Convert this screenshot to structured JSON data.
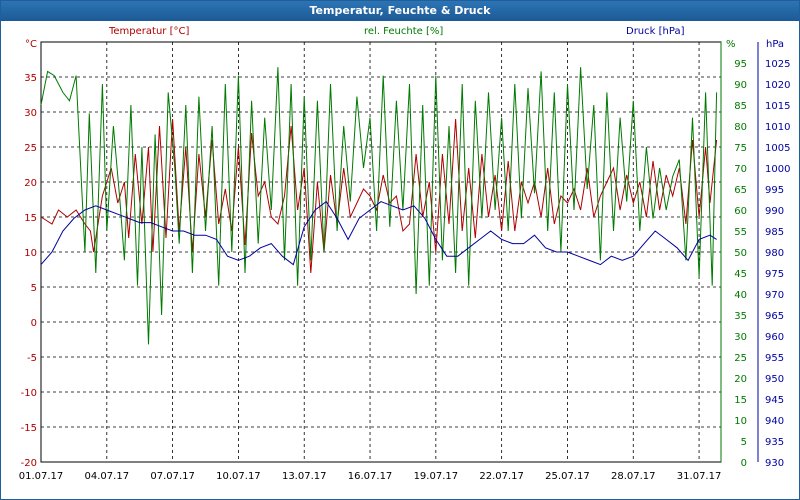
{
  "window": {
    "title": "Temperatur, Feuchte & Druck"
  },
  "colors": {
    "title_bg": "#1f63a3",
    "temp": "#b00000",
    "humid": "#007a00",
    "press": "#0000a0",
    "grid": "#000000",
    "date_text": "#000000"
  },
  "chart_data": {
    "type": "line",
    "title": "Temperatur, Feuchte & Druck",
    "grid": true,
    "x": [
      "01.07.17",
      "04.07.17",
      "07.07.17",
      "10.07.17",
      "13.07.17",
      "16.07.17",
      "19.07.17",
      "22.07.17",
      "25.07.17",
      "28.07.17",
      "31.07.17"
    ],
    "x_range": [
      1,
      32
    ],
    "x_ticks": [
      1,
      4,
      7,
      10,
      13,
      16,
      19,
      22,
      25,
      28,
      31
    ],
    "axes": {
      "left": {
        "unit": "°C",
        "range": [
          -20,
          40
        ],
        "ticks": [
          -20,
          -15,
          -10,
          -5,
          0,
          5,
          10,
          15,
          20,
          25,
          30,
          35
        ]
      },
      "right1": {
        "unit": "%",
        "range": [
          0,
          100
        ],
        "ticks": [
          0,
          5,
          10,
          15,
          20,
          25,
          30,
          35,
          40,
          45,
          50,
          55,
          60,
          65,
          70,
          75,
          80,
          85,
          90,
          95
        ]
      },
      "right2": {
        "unit": "hPa",
        "range": [
          930,
          1030
        ],
        "ticks": [
          930,
          935,
          940,
          945,
          950,
          955,
          960,
          965,
          970,
          975,
          980,
          985,
          990,
          995,
          1000,
          1005,
          1010,
          1015,
          1020,
          1025
        ]
      }
    },
    "series": [
      {
        "name": "Temperatur [°C]",
        "axis": "left",
        "color": "#b00000",
        "x": [
          1,
          1.5,
          1.8,
          2.2,
          2.6,
          3.0,
          3.25,
          3.4,
          3.8,
          4.2,
          4.5,
          4.8,
          5.0,
          5.3,
          5.6,
          5.9,
          6.1,
          6.4,
          6.7,
          7.0,
          7.3,
          7.6,
          7.9,
          8.2,
          8.5,
          8.8,
          9.1,
          9.4,
          9.7,
          10.0,
          10.3,
          10.6,
          10.9,
          11.2,
          11.5,
          11.8,
          12.1,
          12.4,
          12.7,
          13.0,
          13.3,
          13.6,
          13.9,
          14.2,
          14.5,
          14.8,
          15.1,
          15.4,
          15.7,
          16.0,
          16.3,
          16.6,
          16.9,
          17.2,
          17.5,
          17.8,
          18.1,
          18.4,
          18.7,
          19.0,
          19.3,
          19.6,
          19.9,
          20.2,
          20.5,
          20.8,
          21.1,
          21.4,
          21.7,
          22.0,
          22.3,
          22.6,
          22.9,
          23.2,
          23.5,
          23.8,
          24.1,
          24.4,
          24.7,
          25.0,
          25.3,
          25.6,
          25.9,
          26.2,
          26.5,
          26.8,
          27.1,
          27.4,
          27.7,
          28.0,
          28.3,
          28.6,
          28.9,
          29.2,
          29.5,
          29.8,
          30.1,
          30.4,
          30.7,
          31.0,
          31.3,
          31.5,
          31.8
        ],
        "values": [
          15,
          14,
          16,
          15,
          16,
          14,
          13,
          10,
          18,
          22,
          17,
          20,
          12,
          24,
          14,
          25,
          10,
          28,
          12,
          29,
          13,
          25,
          10,
          24,
          15,
          26,
          14,
          19,
          13,
          25,
          11,
          27,
          18,
          20,
          15,
          14,
          18,
          28,
          16,
          22,
          7,
          20,
          10,
          21,
          14,
          22,
          15,
          17,
          19,
          18,
          16,
          21,
          17,
          18,
          13,
          14,
          24,
          15,
          20,
          10,
          24,
          14,
          29,
          13,
          22,
          12,
          24,
          15,
          21,
          13,
          23,
          13,
          20,
          17,
          20,
          15,
          22,
          14,
          18,
          17,
          19,
          16,
          22,
          15,
          18,
          20,
          22,
          16,
          21,
          17,
          20,
          15,
          23,
          16,
          21,
          18,
          22,
          14,
          26,
          15,
          25,
          17,
          26
        ],
        "ylabel": ""
      },
      {
        "name": "rel. Feuchte [%]",
        "axis": "right1",
        "color": "#007a00",
        "x": [
          1,
          1.3,
          1.6,
          2.0,
          2.3,
          2.6,
          3.0,
          3.2,
          3.5,
          3.8,
          4.0,
          4.3,
          4.6,
          4.8,
          5.1,
          5.4,
          5.6,
          5.9,
          6.2,
          6.5,
          6.8,
          7.1,
          7.3,
          7.6,
          7.9,
          8.2,
          8.5,
          8.8,
          9.1,
          9.4,
          9.7,
          10.0,
          10.3,
          10.6,
          10.9,
          11.2,
          11.5,
          11.8,
          12.1,
          12.4,
          12.7,
          13.0,
          13.3,
          13.6,
          13.9,
          14.2,
          14.5,
          14.8,
          15.1,
          15.4,
          15.7,
          16.0,
          16.3,
          16.6,
          16.9,
          17.2,
          17.5,
          17.8,
          18.1,
          18.4,
          18.7,
          19.0,
          19.3,
          19.6,
          19.9,
          20.2,
          20.5,
          20.8,
          21.1,
          21.4,
          21.7,
          22.0,
          22.3,
          22.6,
          22.9,
          23.2,
          23.5,
          23.8,
          24.1,
          24.4,
          24.7,
          25.0,
          25.3,
          25.6,
          25.9,
          26.2,
          26.5,
          26.8,
          27.1,
          27.4,
          27.7,
          28.0,
          28.3,
          28.6,
          28.9,
          29.2,
          29.5,
          29.8,
          30.1,
          30.4,
          30.7,
          31.0,
          31.3,
          31.6,
          31.8
        ],
        "values": [
          85,
          93,
          92,
          88,
          86,
          92,
          50,
          83,
          45,
          90,
          55,
          80,
          62,
          48,
          85,
          42,
          75,
          28,
          78,
          35,
          88,
          70,
          52,
          85,
          45,
          87,
          55,
          80,
          42,
          90,
          50,
          92,
          45,
          86,
          52,
          82,
          60,
          94,
          48,
          90,
          42,
          87,
          48,
          86,
          50,
          90,
          55,
          80,
          62,
          87,
          70,
          82,
          55,
          92,
          56,
          86,
          60,
          90,
          40,
          85,
          42,
          92,
          48,
          80,
          45,
          90,
          42,
          86,
          58,
          88,
          60,
          82,
          55,
          90,
          58,
          89,
          64,
          93,
          55,
          88,
          50,
          90,
          60,
          94,
          65,
          85,
          48,
          88,
          55,
          82,
          62,
          86,
          55,
          75,
          58,
          70,
          60,
          68,
          72,
          48,
          82,
          44,
          88,
          42,
          88
        ],
        "ylabel": ""
      },
      {
        "name": "Druck [hPa]",
        "axis": "right2",
        "color": "#0000a0",
        "x": [
          1,
          1.5,
          2.0,
          2.5,
          3.0,
          3.5,
          4.0,
          4.5,
          5.0,
          5.5,
          6.0,
          6.5,
          7.0,
          7.5,
          8.0,
          8.5,
          9.0,
          9.5,
          10.0,
          10.5,
          11.0,
          11.5,
          12.0,
          12.5,
          13.0,
          13.5,
          14.0,
          14.5,
          15.0,
          15.5,
          16.0,
          16.5,
          17.0,
          17.5,
          18.0,
          18.5,
          19.0,
          19.5,
          20.0,
          20.5,
          21.0,
          21.5,
          22.0,
          22.5,
          23.0,
          23.5,
          24.0,
          24.5,
          25.0,
          25.5,
          26.0,
          26.5,
          27.0,
          27.5,
          28.0,
          28.5,
          29.0,
          29.5,
          30.0,
          30.5,
          31.0,
          31.5,
          31.8
        ],
        "values": [
          977,
          980,
          985,
          988,
          990,
          991,
          990,
          989,
          988,
          987,
          987,
          986,
          985,
          985,
          984,
          984,
          983,
          979,
          978,
          979,
          981,
          982,
          979,
          977,
          986,
          990,
          992,
          988,
          983,
          988,
          990,
          992,
          991,
          990,
          991,
          988,
          983,
          979,
          979,
          981,
          983,
          985,
          983,
          982,
          982,
          984,
          981,
          980,
          980,
          979,
          978,
          977,
          979,
          978,
          979,
          982,
          985,
          983,
          981,
          978,
          983,
          984,
          983
        ],
        "ylabel": ""
      }
    ]
  }
}
